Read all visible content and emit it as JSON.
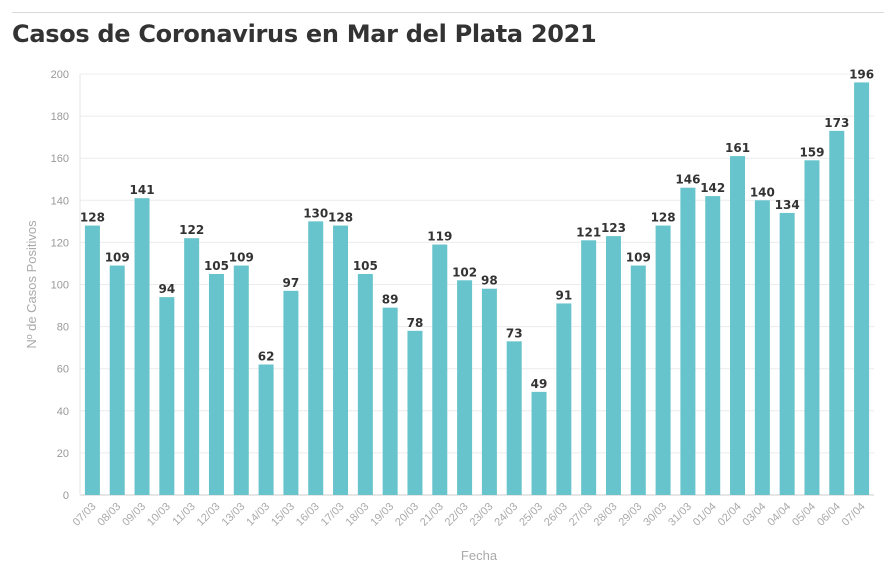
{
  "chart_data": {
    "type": "bar",
    "title": "Casos de Coronavirus en Mar del Plata 2021",
    "xlabel": "Fecha",
    "ylabel": "Nº de Casos Positivos",
    "ylim": [
      0,
      200
    ],
    "yticks": [
      0,
      20,
      40,
      60,
      80,
      100,
      120,
      140,
      160,
      180,
      200
    ],
    "grid": true,
    "bar_color": "#67c4cc",
    "categories": [
      "07/03",
      "08/03",
      "09/03",
      "10/03",
      "11/03",
      "12/03",
      "13/03",
      "14/03",
      "15/03",
      "16/03",
      "17/03",
      "18/03",
      "19/03",
      "20/03",
      "21/03",
      "22/03",
      "23/03",
      "24/03",
      "25/03",
      "26/03",
      "27/03",
      "28/03",
      "29/03",
      "30/03",
      "31/03",
      "01/04",
      "02/04",
      "03/04",
      "04/04",
      "05/04",
      "06/04",
      "07/04"
    ],
    "values": [
      128,
      109,
      141,
      94,
      122,
      105,
      109,
      62,
      97,
      130,
      128,
      105,
      89,
      78,
      119,
      102,
      98,
      73,
      49,
      91,
      121,
      123,
      109,
      128,
      146,
      142,
      161,
      140,
      134,
      159,
      173,
      196
    ]
  }
}
